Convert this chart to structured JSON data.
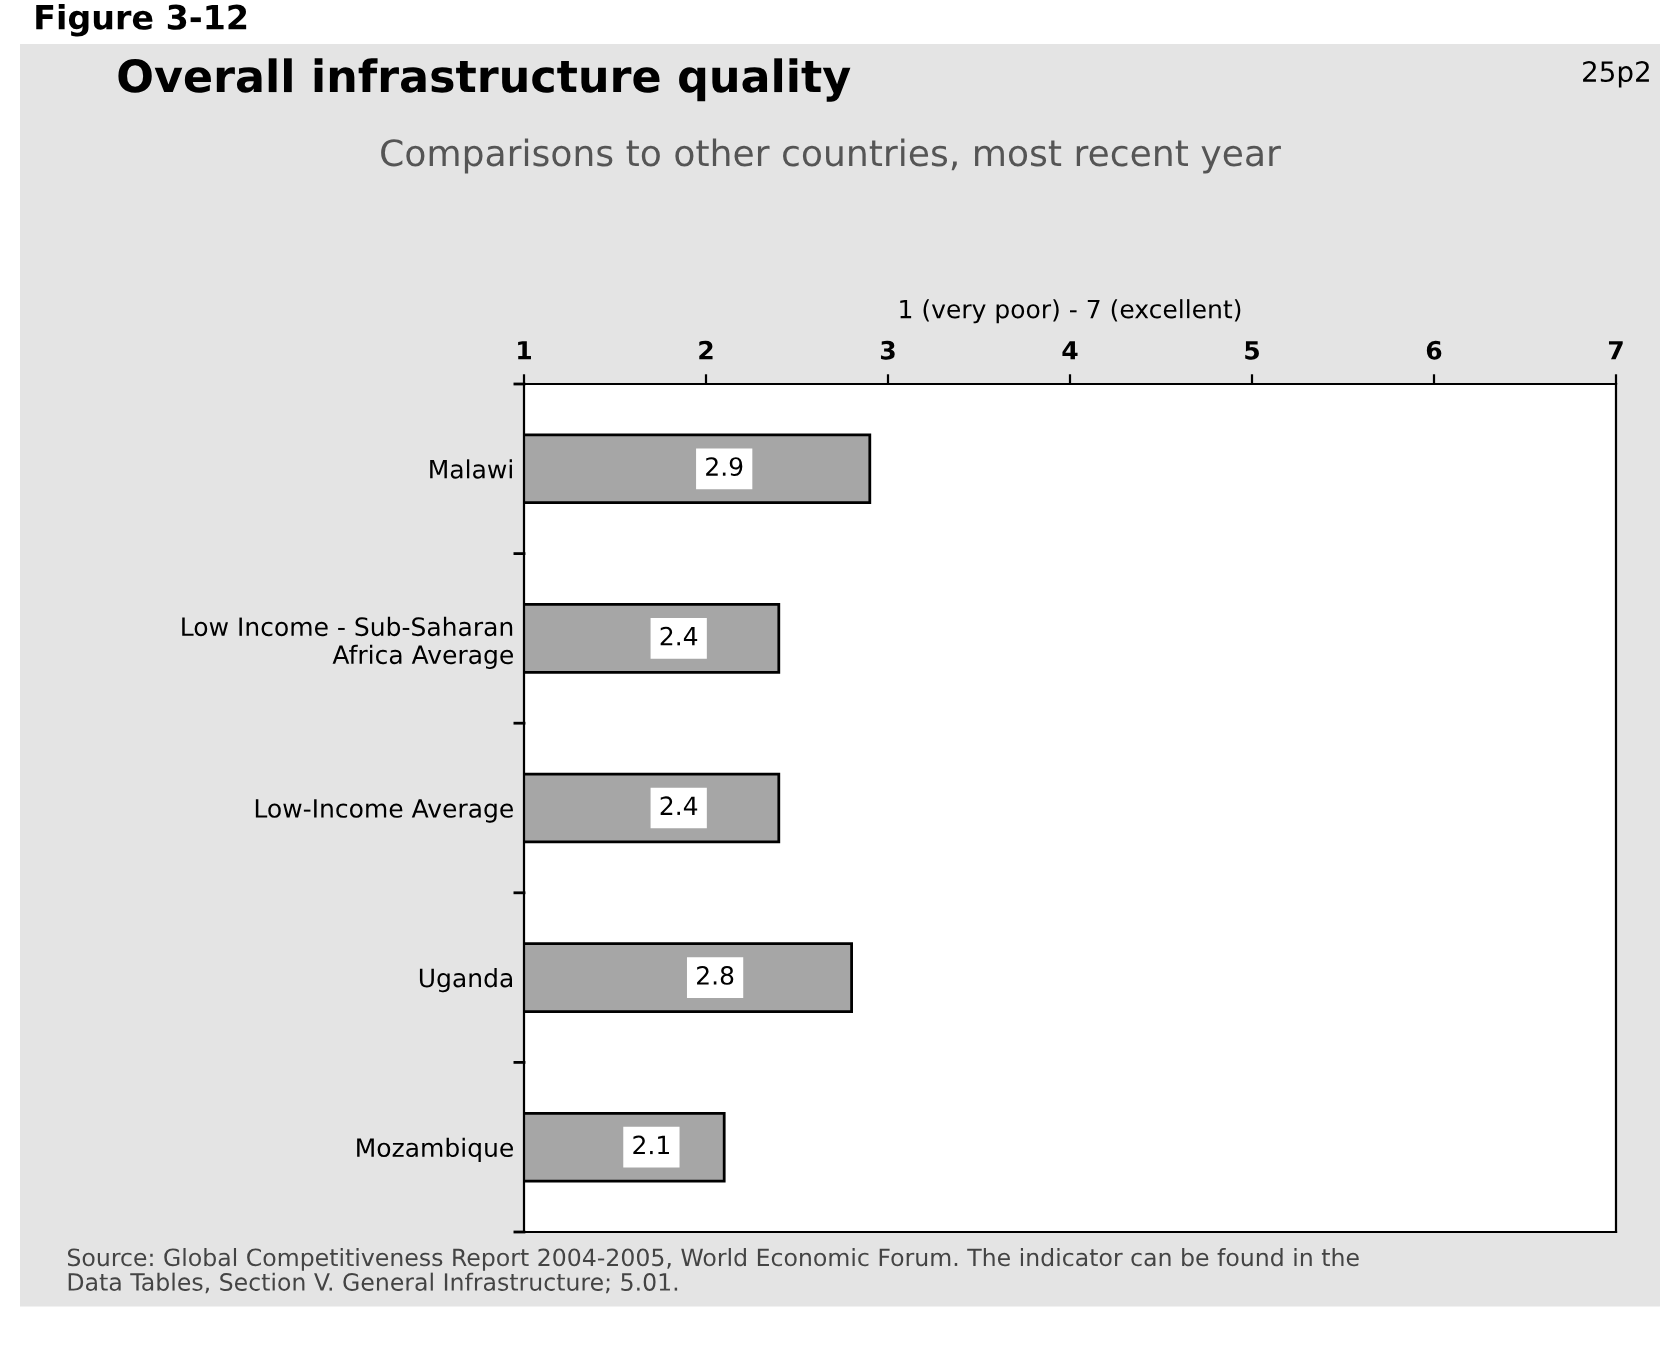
{
  "chart_data": {
    "type": "bar",
    "orientation": "horizontal",
    "title": "Overall infrastructure quality",
    "subtitle": "Comparisons to other countries, most recent year",
    "xlabel": "1 (very poor) - 7 (excellent)",
    "categories": [
      "Malawi",
      "Low Income - Sub-Saharan\nAfrica Average",
      "Low-Income Average",
      "Uganda",
      "Mozambique"
    ],
    "values": [
      2.9,
      2.4,
      2.4,
      2.8,
      2.1
    ],
    "color": "#a6a6a6",
    "data_labels": true,
    "xlim": [
      1,
      7
    ],
    "xticks": [
      1,
      2,
      3,
      4,
      5,
      6,
      7
    ],
    "grid": false,
    "legend": false,
    "annotations": [
      "Figure 3-12",
      "25p2",
      "Source: Global Competitiveness Report 2004-2005, World Economic Forum. The indicator can be found in the\nData Tables, Section V. General Infrastructure; 5.01."
    ]
  }
}
